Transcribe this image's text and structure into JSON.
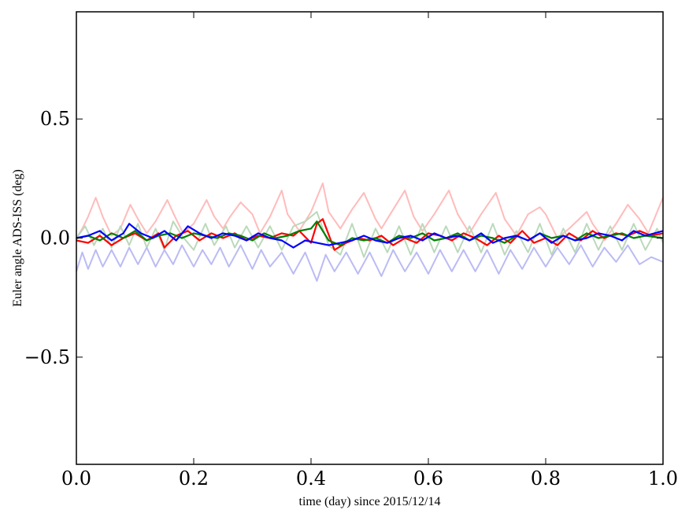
{
  "chart_data": {
    "type": "line",
    "title": "",
    "xlabel": "time (day) since 2015/12/14",
    "ylabel": "Euler angle ADS-ISS (deg)",
    "xlim": [
      0.0,
      1.0
    ],
    "ylim": [
      -0.95,
      0.95
    ],
    "x_ticks": [
      "0.0",
      "0.2",
      "0.4",
      "0.6",
      "0.8",
      "1.0"
    ],
    "y_ticks": [
      "0.5",
      "0.0",
      "−0.5"
    ],
    "grid": false,
    "legend": "none",
    "series": [
      {
        "color": "#ffbbbb",
        "x": [
          0.0,
          0.01,
          0.02,
          0.033,
          0.045,
          0.06,
          0.075,
          0.092,
          0.105,
          0.12,
          0.135,
          0.155,
          0.168,
          0.182,
          0.2,
          0.222,
          0.235,
          0.25,
          0.262,
          0.28,
          0.3,
          0.313,
          0.33,
          0.35,
          0.36,
          0.38,
          0.4,
          0.42,
          0.43,
          0.45,
          0.47,
          0.49,
          0.51,
          0.52,
          0.54,
          0.56,
          0.575,
          0.59,
          0.61,
          0.635,
          0.65,
          0.67,
          0.69,
          0.715,
          0.73,
          0.75,
          0.77,
          0.79,
          0.8,
          0.82,
          0.84,
          0.87,
          0.88,
          0.9,
          0.92,
          0.94,
          0.96,
          0.975,
          1.0
        ],
        "y": [
          0.0,
          0.04,
          0.09,
          0.17,
          0.09,
          0.01,
          0.04,
          0.14,
          0.08,
          0.02,
          0.07,
          0.16,
          0.09,
          0.02,
          0.06,
          0.16,
          0.09,
          0.04,
          0.09,
          0.15,
          0.1,
          0.02,
          0.09,
          0.2,
          0.1,
          0.03,
          0.11,
          0.23,
          0.11,
          0.04,
          0.12,
          0.19,
          0.08,
          0.04,
          0.12,
          0.2,
          0.09,
          0.03,
          0.1,
          0.2,
          0.1,
          0.02,
          0.1,
          0.19,
          0.08,
          0.01,
          0.1,
          0.13,
          0.1,
          0.0,
          0.04,
          0.11,
          0.06,
          -0.01,
          0.06,
          0.14,
          0.08,
          0.02,
          0.17
        ]
      },
      {
        "color": "#bbd9bb",
        "x": [
          0.0,
          0.015,
          0.03,
          0.045,
          0.06,
          0.075,
          0.09,
          0.105,
          0.12,
          0.135,
          0.15,
          0.165,
          0.18,
          0.2,
          0.22,
          0.235,
          0.255,
          0.27,
          0.29,
          0.31,
          0.33,
          0.35,
          0.37,
          0.39,
          0.41,
          0.43,
          0.45,
          0.47,
          0.49,
          0.51,
          0.53,
          0.55,
          0.57,
          0.59,
          0.61,
          0.63,
          0.65,
          0.67,
          0.69,
          0.71,
          0.73,
          0.75,
          0.77,
          0.79,
          0.81,
          0.83,
          0.85,
          0.87,
          0.89,
          0.91,
          0.93,
          0.95,
          0.97,
          0.99,
          1.0
        ],
        "y": [
          0.0,
          0.05,
          -0.03,
          0.04,
          -0.04,
          0.05,
          -0.03,
          0.06,
          -0.04,
          0.04,
          -0.05,
          0.07,
          0.01,
          -0.05,
          0.06,
          -0.03,
          0.05,
          -0.04,
          0.05,
          -0.04,
          0.05,
          -0.05,
          0.05,
          0.07,
          0.11,
          -0.03,
          -0.07,
          0.06,
          -0.08,
          0.04,
          -0.06,
          0.05,
          -0.07,
          0.06,
          -0.06,
          0.05,
          -0.06,
          0.05,
          -0.06,
          0.06,
          -0.07,
          0.03,
          -0.06,
          0.06,
          -0.07,
          0.04,
          -0.06,
          0.06,
          -0.05,
          0.05,
          -0.05,
          0.06,
          -0.05,
          0.04,
          -0.02
        ]
      },
      {
        "color": "#bbbbf5",
        "x": [
          0.0,
          0.01,
          0.02,
          0.033,
          0.045,
          0.06,
          0.075,
          0.09,
          0.105,
          0.12,
          0.135,
          0.15,
          0.165,
          0.18,
          0.2,
          0.215,
          0.23,
          0.245,
          0.26,
          0.28,
          0.3,
          0.315,
          0.33,
          0.35,
          0.37,
          0.39,
          0.41,
          0.425,
          0.44,
          0.46,
          0.48,
          0.5,
          0.52,
          0.54,
          0.56,
          0.58,
          0.6,
          0.62,
          0.64,
          0.66,
          0.68,
          0.7,
          0.72,
          0.74,
          0.76,
          0.78,
          0.8,
          0.82,
          0.84,
          0.86,
          0.88,
          0.9,
          0.92,
          0.94,
          0.96,
          0.98,
          1.0
        ],
        "y": [
          -0.14,
          -0.06,
          -0.13,
          -0.05,
          -0.12,
          -0.05,
          -0.12,
          -0.04,
          -0.11,
          -0.04,
          -0.12,
          -0.05,
          -0.11,
          -0.03,
          -0.12,
          -0.05,
          -0.11,
          -0.04,
          -0.12,
          -0.03,
          -0.13,
          -0.05,
          -0.12,
          -0.06,
          -0.15,
          -0.06,
          -0.18,
          -0.07,
          -0.14,
          -0.06,
          -0.15,
          -0.06,
          -0.16,
          -0.05,
          -0.14,
          -0.06,
          -0.15,
          -0.05,
          -0.14,
          -0.05,
          -0.14,
          -0.05,
          -0.15,
          -0.05,
          -0.13,
          -0.04,
          -0.12,
          -0.04,
          -0.11,
          -0.03,
          -0.12,
          -0.04,
          -0.1,
          -0.03,
          -0.11,
          -0.08,
          -0.1
        ]
      },
      {
        "color": "#ff0000",
        "x": [
          0.0,
          0.02,
          0.04,
          0.06,
          0.08,
          0.1,
          0.12,
          0.14,
          0.15,
          0.17,
          0.19,
          0.21,
          0.23,
          0.25,
          0.27,
          0.29,
          0.31,
          0.33,
          0.35,
          0.37,
          0.38,
          0.4,
          0.41,
          0.42,
          0.44,
          0.46,
          0.48,
          0.5,
          0.52,
          0.54,
          0.56,
          0.58,
          0.6,
          0.62,
          0.64,
          0.66,
          0.68,
          0.7,
          0.72,
          0.74,
          0.76,
          0.78,
          0.8,
          0.82,
          0.84,
          0.86,
          0.88,
          0.9,
          0.92,
          0.94,
          0.96,
          0.98,
          1.0
        ],
        "y": [
          -0.01,
          -0.02,
          0.01,
          -0.03,
          0.0,
          0.02,
          -0.01,
          0.02,
          -0.04,
          0.01,
          0.03,
          -0.01,
          0.02,
          0.0,
          0.02,
          -0.01,
          0.01,
          0.0,
          0.02,
          0.01,
          0.03,
          -0.02,
          0.06,
          0.08,
          -0.05,
          -0.02,
          0.0,
          -0.01,
          0.01,
          -0.03,
          0.0,
          -0.02,
          0.02,
          0.01,
          -0.01,
          0.02,
          0.0,
          -0.03,
          0.01,
          -0.02,
          0.03,
          -0.02,
          0.0,
          -0.03,
          0.02,
          -0.01,
          0.03,
          0.0,
          0.02,
          0.01,
          0.03,
          0.01,
          0.02
        ]
      },
      {
        "color": "#008000",
        "x": [
          0.0,
          0.02,
          0.04,
          0.06,
          0.08,
          0.1,
          0.12,
          0.14,
          0.16,
          0.18,
          0.2,
          0.22,
          0.24,
          0.26,
          0.28,
          0.3,
          0.32,
          0.34,
          0.36,
          0.38,
          0.4,
          0.41,
          0.43,
          0.45,
          0.47,
          0.49,
          0.51,
          0.53,
          0.55,
          0.57,
          0.59,
          0.61,
          0.63,
          0.65,
          0.67,
          0.69,
          0.71,
          0.73,
          0.75,
          0.77,
          0.79,
          0.81,
          0.83,
          0.85,
          0.87,
          0.89,
          0.91,
          0.93,
          0.95,
          0.97,
          1.0
        ],
        "y": [
          0.0,
          0.01,
          -0.01,
          0.02,
          0.0,
          0.03,
          -0.01,
          0.01,
          0.02,
          0.0,
          0.02,
          0.01,
          0.0,
          0.02,
          0.01,
          -0.01,
          0.02,
          0.0,
          0.01,
          0.03,
          0.04,
          0.07,
          -0.01,
          -0.03,
          0.0,
          -0.01,
          0.0,
          -0.02,
          0.01,
          0.0,
          0.02,
          -0.01,
          0.0,
          0.02,
          -0.01,
          0.01,
          0.0,
          -0.02,
          0.01,
          -0.01,
          0.02,
          0.0,
          0.01,
          -0.01,
          0.02,
          0.0,
          0.01,
          0.02,
          0.0,
          0.01,
          0.0
        ]
      },
      {
        "color": "#0000ff",
        "x": [
          0.0,
          0.02,
          0.04,
          0.06,
          0.08,
          0.09,
          0.11,
          0.13,
          0.15,
          0.17,
          0.19,
          0.21,
          0.23,
          0.25,
          0.27,
          0.29,
          0.31,
          0.33,
          0.35,
          0.37,
          0.39,
          0.41,
          0.43,
          0.45,
          0.47,
          0.49,
          0.51,
          0.53,
          0.55,
          0.57,
          0.59,
          0.61,
          0.63,
          0.65,
          0.67,
          0.69,
          0.71,
          0.73,
          0.75,
          0.77,
          0.79,
          0.81,
          0.83,
          0.85,
          0.87,
          0.89,
          0.91,
          0.93,
          0.95,
          0.97,
          1.0
        ],
        "y": [
          0.0,
          0.01,
          0.03,
          -0.01,
          0.02,
          0.06,
          0.02,
          0.0,
          0.03,
          -0.01,
          0.05,
          0.02,
          0.0,
          0.02,
          0.01,
          -0.01,
          0.02,
          0.0,
          -0.01,
          -0.04,
          -0.01,
          -0.02,
          -0.03,
          -0.02,
          -0.01,
          0.01,
          -0.01,
          -0.02,
          0.0,
          0.01,
          -0.01,
          0.02,
          0.0,
          0.01,
          -0.01,
          0.02,
          -0.02,
          0.0,
          0.01,
          -0.01,
          0.02,
          -0.02,
          0.01,
          -0.01,
          0.0,
          0.02,
          0.01,
          -0.01,
          0.03,
          0.01,
          0.03
        ]
      }
    ]
  }
}
